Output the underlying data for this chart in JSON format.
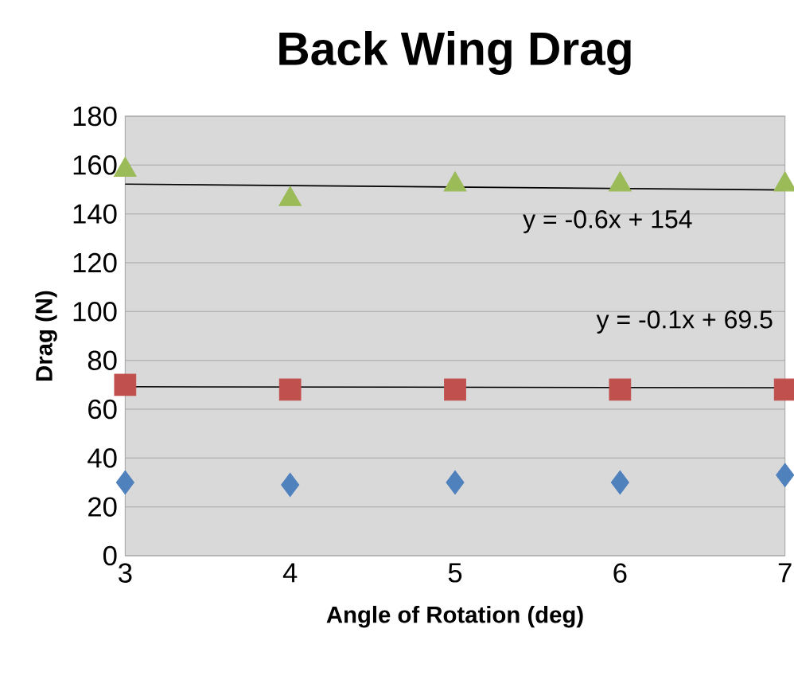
{
  "chart_data": {
    "type": "scatter",
    "title": "Back Wing Drag",
    "xlabel": "Angle of Rotation (deg)",
    "ylabel": "Drag (N)",
    "series": [
      {
        "color": "#4f81bd",
        "marker": "diamond",
        "x": [
          3,
          4,
          5,
          6,
          7
        ],
        "values": [
          30,
          29,
          30,
          30,
          33
        ]
      },
      {
        "color": "#c0504d",
        "marker": "square",
        "x": [
          3,
          4,
          5,
          6,
          7
        ],
        "values": [
          70,
          68,
          68,
          68,
          68
        ]
      },
      {
        "color": "#9bbb59",
        "marker": "triangle",
        "x": [
          3,
          4,
          5,
          6,
          7
        ],
        "values": [
          158,
          146,
          152,
          152,
          152
        ]
      },
      {
        "type": "line",
        "color": "#000000",
        "x": [
          3,
          7
        ],
        "values": [
          152.2,
          149.8
        ]
      },
      {
        "type": "line",
        "color": "#000000",
        "x": [
          3,
          7
        ],
        "values": [
          69.2,
          68.8
        ]
      }
    ],
    "annotations": [
      "y = -0.6x + 154",
      "y = -0.1x + 69.5"
    ],
    "xlim": [
      3,
      7
    ],
    "xticks": [
      3,
      4,
      5,
      6,
      7
    ],
    "ylim": [
      0,
      180
    ],
    "yticks": [
      0,
      20,
      40,
      60,
      80,
      100,
      120,
      140,
      160,
      180
    ],
    "grid": "y"
  }
}
